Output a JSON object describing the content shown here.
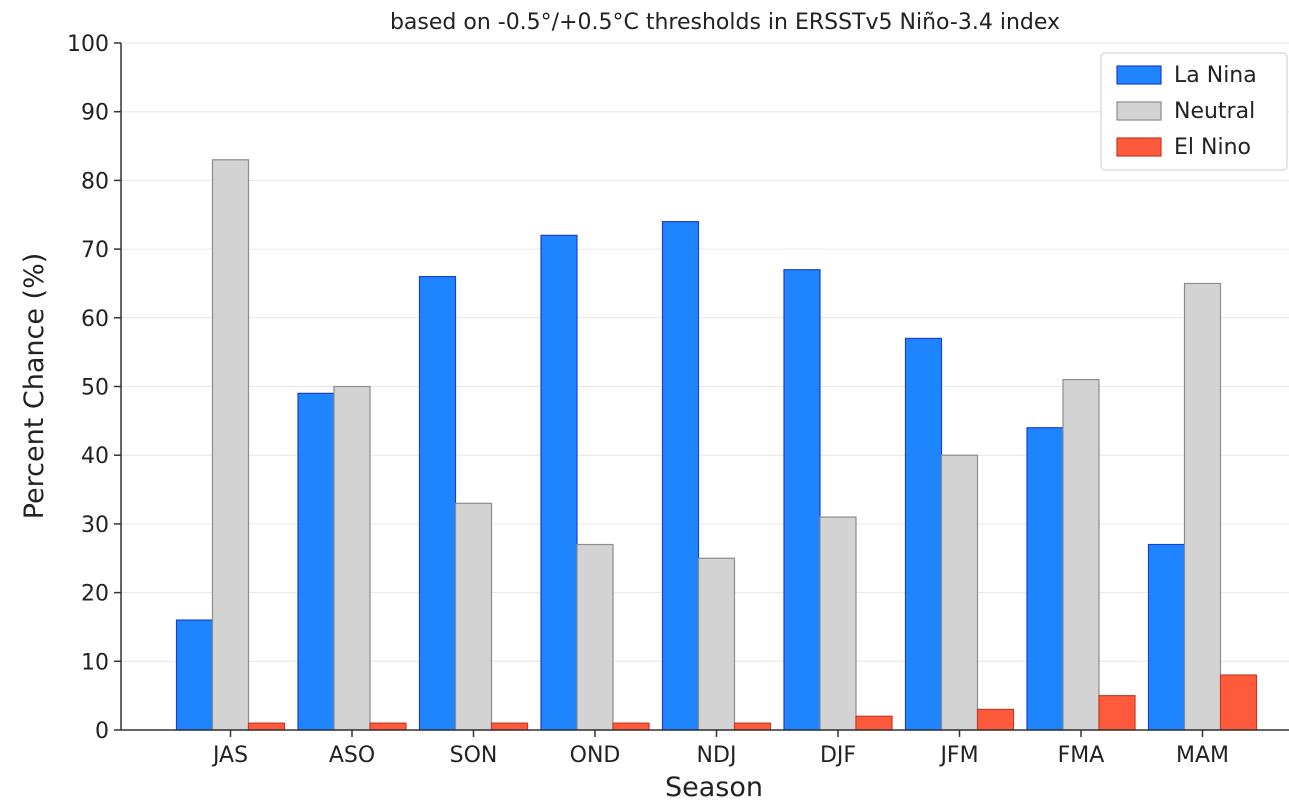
{
  "chart_data": {
    "type": "bar",
    "title": "based on -0.5°/+0.5°C thresholds in ERSSTv5 Niño-3.4 index",
    "xlabel": "Season",
    "ylabel": "Percent Chance (%)",
    "ylim": [
      0,
      100
    ],
    "yticks": [
      "0",
      "10",
      "20",
      "30",
      "40",
      "50",
      "60",
      "70",
      "80",
      "90",
      "100"
    ],
    "grid": true,
    "legend_position": "top-right",
    "categories": [
      "JAS",
      "ASO",
      "SON",
      "OND",
      "NDJ",
      "DJF",
      "JFM",
      "FMA",
      "MAM"
    ],
    "series": [
      {
        "name": "La Nina",
        "color": "#1f85ff",
        "edge": "#1a3fd6",
        "values": [
          16,
          49,
          66,
          72,
          74,
          67,
          57,
          44,
          27
        ]
      },
      {
        "name": "Neutral",
        "color": "#d3d3d3",
        "edge": "#8c8c8c",
        "values": [
          83,
          50,
          33,
          27,
          25,
          31,
          40,
          51,
          65
        ]
      },
      {
        "name": "El Nino",
        "color": "#ff5a3c",
        "edge": "#c83a22",
        "values": [
          1,
          1,
          1,
          1,
          1,
          2,
          3,
          5,
          8
        ]
      }
    ]
  }
}
